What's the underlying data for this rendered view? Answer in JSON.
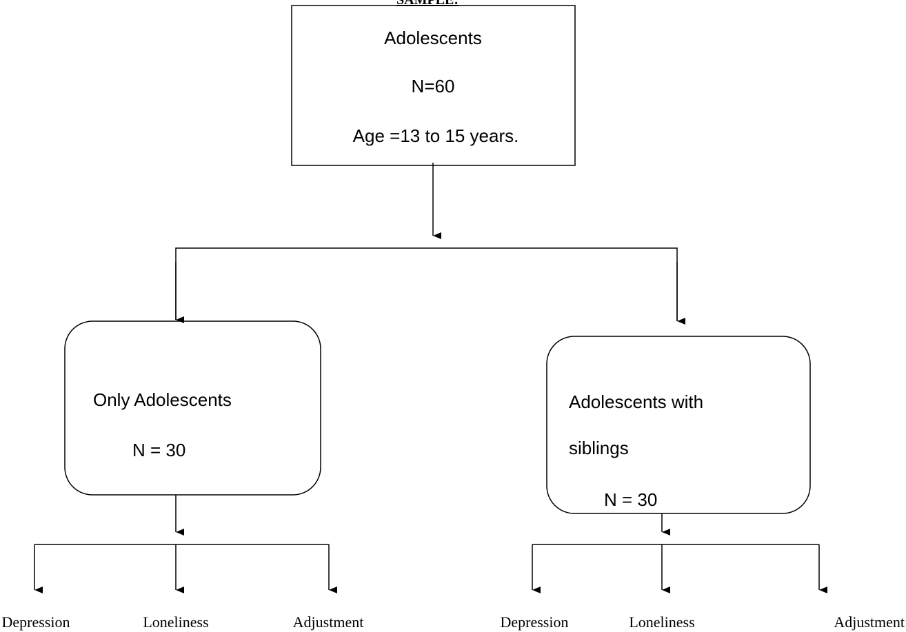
{
  "title": "SAMPLE:",
  "root": {
    "lines": [
      "Adolescents",
      "N=60",
      "Age =13 to 15 years."
    ]
  },
  "groups": [
    {
      "lines": [
        "Only Adolescents",
        "N = 30"
      ],
      "measures": [
        "Depression",
        "Loneliness",
        "Adjustment"
      ]
    },
    {
      "lines": [
        "Adolescents with",
        "siblings",
        "N = 30"
      ],
      "measures": [
        "Depression",
        "Loneliness",
        "Adjustment"
      ]
    }
  ]
}
